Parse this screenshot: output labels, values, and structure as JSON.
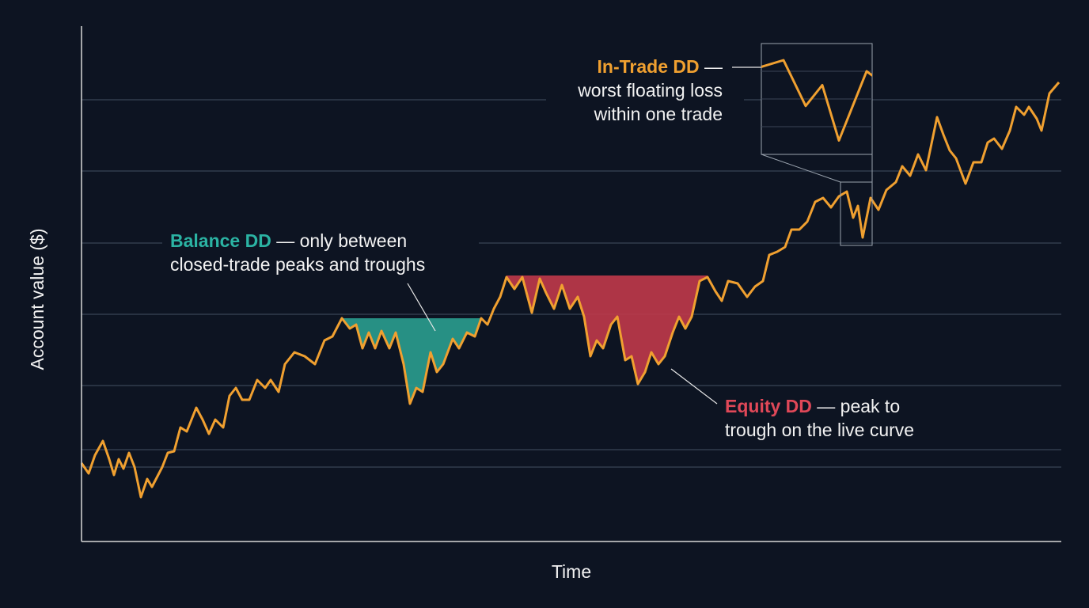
{
  "chart_data": {
    "type": "line",
    "xlabel": "Time",
    "ylabel": "Account value ($)",
    "xlim": [
      0,
      1237
    ],
    "ylim": [
      0,
      651
    ],
    "yticks": [
      94,
      116,
      197,
      287,
      377,
      468,
      558
    ],
    "grid": true,
    "series": [
      {
        "color": "#f0a030",
        "x": [
          0,
          9,
          17,
          27,
          35,
          41,
          47,
          53,
          60,
          67,
          75,
          83,
          89,
          102,
          109,
          117,
          125,
          133,
          145,
          153,
          161,
          169,
          179,
          187,
          195,
          203,
          212,
          222,
          232,
          239,
          249,
          257,
          269,
          282,
          295,
          307,
          317,
          329,
          339,
          347,
          355,
          363,
          371,
          379,
          389,
          397,
          407,
          415,
          423,
          431,
          441,
          449,
          457,
          469,
          477,
          487,
          497,
          505,
          513,
          521,
          529,
          537,
          547,
          557,
          569,
          579,
          587,
          597,
          607,
          617,
          627,
          635,
          643,
          651,
          659,
          669,
          677,
          687,
          695,
          703,
          712,
          720,
          729,
          737,
          747,
          755,
          763,
          771,
          781,
          791,
          801,
          809,
          817,
          829,
          841,
          851,
          861,
          869,
          879,
          889,
          897,
          907,
          917,
          927,
          937,
          947,
          957,
          967,
          975,
          981,
          987,
          997,
          1007,
          1017,
          1029,
          1037,
          1047,
          1057,
          1067,
          1081,
          1089,
          1097,
          1105,
          1117,
          1127,
          1137,
          1145,
          1153,
          1163,
          1173,
          1181,
          1191,
          1197,
          1207,
          1213,
          1223,
          1235
        ],
        "values": [
          99,
          86,
          109,
          127,
          104,
          84,
          104,
          92,
          112,
          94,
          56,
          79,
          69,
          94,
          112,
          114,
          144,
          139,
          169,
          154,
          136,
          154,
          144,
          184,
          194,
          179,
          179,
          204,
          194,
          204,
          189,
          224,
          239,
          234,
          224,
          254,
          259,
          282,
          269,
          274,
          244,
          264,
          244,
          266,
          244,
          264,
          224,
          174,
          194,
          189,
          239,
          214,
          224,
          256,
          244,
          264,
          259,
          282,
          274,
          294,
          309,
          334,
          319,
          334,
          289,
          332,
          314,
          294,
          324,
          294,
          309,
          284,
          234,
          254,
          244,
          274,
          284,
          229,
          234,
          199,
          214,
          239,
          224,
          234,
          264,
          284,
          269,
          284,
          329,
          334,
          316,
          304,
          329,
          326,
          309,
          322,
          329,
          362,
          366,
          372,
          394,
          394,
          404,
          429,
          434,
          422,
          436,
          442,
          409,
          424,
          384,
          434,
          419,
          444,
          454,
          474,
          462,
          489,
          469,
          536,
          514,
          494,
          484,
          452,
          479,
          479,
          504,
          509,
          496,
          519,
          549,
          539,
          549,
          534,
          519,
          566,
          580
        ]
      }
    ],
    "drawdowns": [
      {
        "start": 329,
        "end": 505,
        "level": 282,
        "color": "#2a9d8f"
      },
      {
        "start": 537,
        "end": 791,
        "level": 336,
        "color": "#c0394a"
      }
    ],
    "zoom": {
      "xlim": [
        959,
        999
      ],
      "ylim": [
        374,
        454
      ]
    },
    "annotations": [
      {
        "highlight": "Balance DD",
        "lines": [
          "— only between",
          "closed-trade peaks and troughs"
        ]
      },
      {
        "highlight": "In-Trade DD",
        "lines": [
          "—",
          "worst floating loss",
          "within one trade"
        ]
      },
      {
        "highlight": "Equity DD",
        "lines": [
          "— peak to",
          "trough on the live curve"
        ]
      }
    ]
  }
}
